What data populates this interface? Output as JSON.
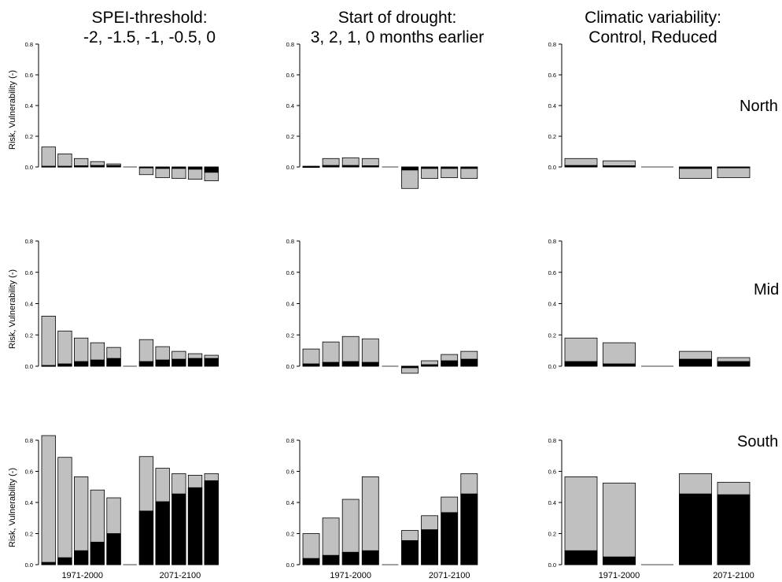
{
  "columns": [
    {
      "title_line1": "SPEI-threshold:",
      "title_line2": "-2, -1.5, -1, -0.5, 0"
    },
    {
      "title_line1": "Start of drought:",
      "title_line2": "3, 2, 1, 0 months earlier"
    },
    {
      "title_line1": "Climatic variability:",
      "title_line2": "Control, Reduced"
    }
  ],
  "rows": [
    "North",
    "Mid",
    "South"
  ],
  "ylabel": "Risk, Vulnerability (-)",
  "ytick_labels": [
    "0.0",
    "0.2",
    "0.4",
    "0.6",
    "0.8"
  ],
  "xgroup_labels": [
    "1971-2000",
    "2071-2100"
  ],
  "colors": {
    "risk": "#c0c0c0",
    "vulnerability": "#000000",
    "outline": "#000000"
  },
  "chart_data": [
    {
      "type": "bar",
      "region": "North",
      "experiment": "SPEI-threshold",
      "ylim": [
        0,
        0.8
      ],
      "risk": [
        0.13,
        0.085,
        0.055,
        0.035,
        0.02,
        0,
        -0.05,
        -0.07,
        -0.075,
        -0.08,
        -0.09
      ],
      "vulnerability": [
        0.005,
        0.005,
        0.008,
        0.01,
        0.01,
        0,
        -0.005,
        -0.01,
        -0.01,
        -0.015,
        -0.035
      ]
    },
    {
      "type": "bar",
      "region": "North",
      "experiment": "Start of drought",
      "ylim": [
        0,
        0.8
      ],
      "risk": [
        0.005,
        0.055,
        0.06,
        0.055,
        0,
        -0.14,
        -0.075,
        -0.07,
        -0.075
      ],
      "vulnerability": [
        0.003,
        0.01,
        0.01,
        0.008,
        0,
        -0.02,
        -0.01,
        -0.01,
        -0.01
      ]
    },
    {
      "type": "bar",
      "region": "North",
      "experiment": "Climatic variability",
      "ylim": [
        0,
        0.8
      ],
      "risk": [
        0.055,
        0.04,
        0,
        -0.075,
        -0.07
      ],
      "vulnerability": [
        0.01,
        0.008,
        0,
        -0.01,
        -0.005
      ]
    },
    {
      "type": "bar",
      "region": "Mid",
      "experiment": "SPEI-threshold",
      "ylim": [
        0,
        0.8
      ],
      "risk": [
        0.32,
        0.225,
        0.18,
        0.15,
        0.12,
        0,
        0.17,
        0.125,
        0.095,
        0.08,
        0.07
      ],
      "vulnerability": [
        0.005,
        0.015,
        0.03,
        0.04,
        0.05,
        0,
        0.03,
        0.04,
        0.045,
        0.05,
        0.05
      ]
    },
    {
      "type": "bar",
      "region": "Mid",
      "experiment": "Start of drought",
      "ylim": [
        0,
        0.8
      ],
      "risk": [
        0.11,
        0.155,
        0.19,
        0.175,
        0,
        -0.045,
        0.035,
        0.075,
        0.095
      ],
      "vulnerability": [
        0.015,
        0.025,
        0.03,
        0.025,
        0,
        -0.01,
        0.01,
        0.035,
        0.045
      ]
    },
    {
      "type": "bar",
      "region": "Mid",
      "experiment": "Climatic variability",
      "ylim": [
        0,
        0.8
      ],
      "risk": [
        0.18,
        0.15,
        0,
        0.095,
        0.055
      ],
      "vulnerability": [
        0.03,
        0.015,
        0,
        0.045,
        0.03
      ]
    },
    {
      "type": "bar",
      "region": "South",
      "experiment": "SPEI-threshold",
      "ylim": [
        0,
        0.8
      ],
      "risk": [
        0.83,
        0.69,
        0.565,
        0.48,
        0.43,
        0,
        0.695,
        0.62,
        0.585,
        0.575,
        0.585
      ],
      "vulnerability": [
        0.015,
        0.045,
        0.09,
        0.145,
        0.2,
        0,
        0.345,
        0.405,
        0.455,
        0.495,
        0.54
      ]
    },
    {
      "type": "bar",
      "region": "South",
      "experiment": "Start of drought",
      "ylim": [
        0,
        0.8
      ],
      "risk": [
        0.2,
        0.3,
        0.42,
        0.565,
        0,
        0.22,
        0.315,
        0.435,
        0.585
      ],
      "vulnerability": [
        0.04,
        0.06,
        0.08,
        0.09,
        0,
        0.155,
        0.225,
        0.335,
        0.455
      ]
    },
    {
      "type": "bar",
      "region": "South",
      "experiment": "Climatic variability",
      "ylim": [
        0,
        0.8
      ],
      "risk": [
        0.565,
        0.525,
        0,
        0.585,
        0.53
      ],
      "vulnerability": [
        0.09,
        0.05,
        0,
        0.455,
        0.45
      ]
    }
  ]
}
